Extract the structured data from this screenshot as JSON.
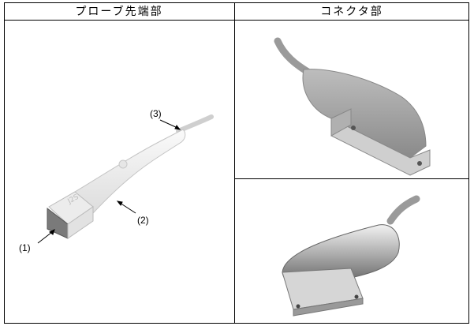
{
  "table": {
    "headers": [
      "プローブ先端部",
      "コネクタ部"
    ]
  },
  "callouts": [
    "(1)",
    "(2)",
    "(3)"
  ]
}
